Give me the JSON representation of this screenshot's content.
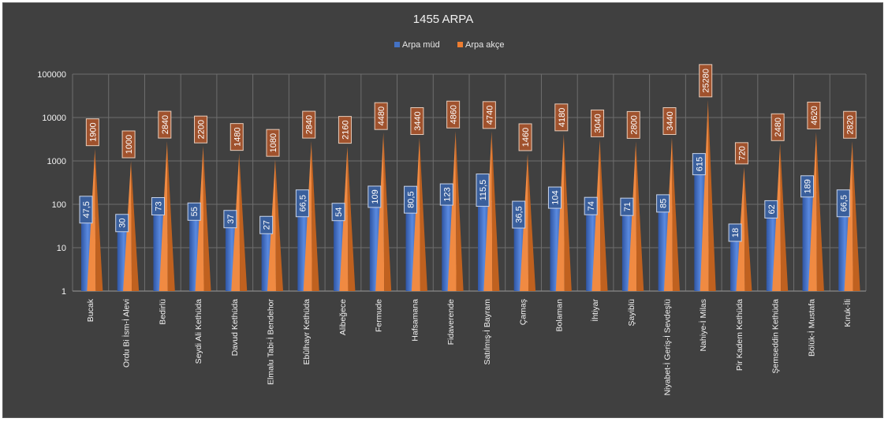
{
  "chart_data": {
    "type": "bar",
    "title": "1455 ARPA",
    "y_scale": "log",
    "ylim": [
      1,
      100000
    ],
    "y_ticks": [
      "1",
      "10",
      "100",
      "1000",
      "10000",
      "100000"
    ],
    "legend_position": "top",
    "grid": true,
    "categories": [
      "Bucak",
      "Ordu Bi İsm-İ Alevi",
      "Bedirlü",
      "Seydi Ali Kethüda",
      "Davud Kethüda",
      "Elmalu Tabi-İ Bendehor",
      "Ebûlhayr Kethüda",
      "Alibeğece",
      "Fermude",
      "Hafsamana",
      "Fidaverende",
      "Satılmış-İ Bayram",
      "Çamaş",
      "Bolaman",
      "İhtiyar",
      "Şayiblü",
      "Niyabet-İ Geriş-İ Sevdeşlü",
      "Nahiye-İ Milas",
      "Pir Kadem Kethüda",
      "Şemseddin Kethüda",
      "Bölük-İ Mustafa",
      "Kıruk-İli"
    ],
    "series": [
      {
        "name": "Arpa müd",
        "color": "#4472c4",
        "values": [
          47.5,
          30,
          73,
          55,
          37,
          27,
          66.5,
          54,
          109,
          80.5,
          123,
          115.5,
          36.5,
          104,
          74,
          71,
          85,
          615,
          18,
          62,
          189,
          66.5
        ],
        "labels": [
          "47,5",
          "30",
          "73",
          "55",
          "37",
          "27",
          "66,5",
          "54",
          "109",
          "80,5",
          "123",
          "115,5",
          "36,5",
          "104",
          "74",
          "71",
          "85",
          "615",
          "18",
          "62",
          "189",
          "66,5"
        ]
      },
      {
        "name": "Arpa akçe",
        "color": "#ed7d31",
        "values": [
          1900,
          1000,
          2840,
          2200,
          1480,
          1080,
          2840,
          2160,
          4480,
          3440,
          4860,
          4740,
          1460,
          4180,
          3040,
          2800,
          3440,
          25280,
          720,
          2480,
          4620,
          2820
        ],
        "labels": [
          "1900",
          "1000",
          "2840",
          "2200",
          "1480",
          "1080",
          "2840",
          "2160",
          "4480",
          "3440",
          "4860",
          "4740",
          "1460",
          "4180",
          "3040",
          "2800",
          "3440",
          "25280",
          "720",
          "2480",
          "4620",
          "2820"
        ]
      }
    ]
  }
}
